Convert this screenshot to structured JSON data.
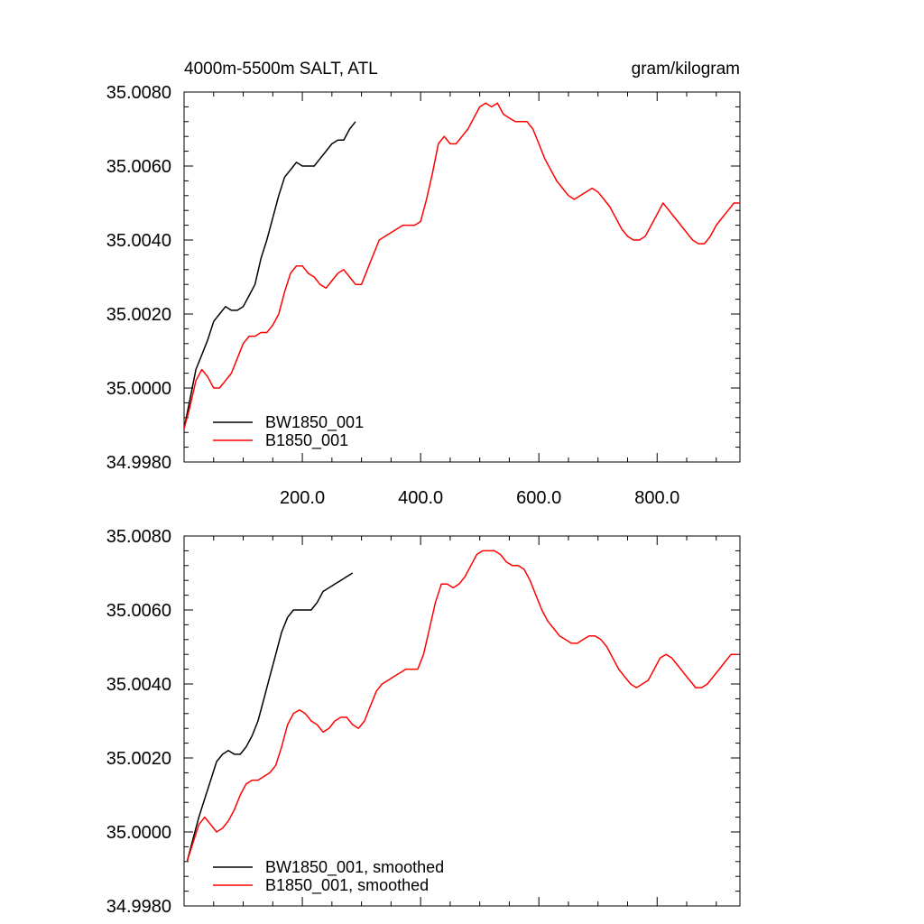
{
  "chart_data": [
    {
      "type": "line",
      "title": "4000m-5500m SALT, ATL",
      "units": "gram/kilogram",
      "xlim": [
        0,
        940
      ],
      "ylim": [
        34.998,
        35.008
      ],
      "yticks": [
        34.998,
        35.0,
        35.002,
        35.004,
        35.006,
        35.008
      ],
      "ytick_labels": [
        "34.9980",
        "35.0000",
        "35.0020",
        "35.0040",
        "35.0060",
        "35.0080"
      ],
      "xticks": [
        200,
        400,
        600,
        800
      ],
      "xtick_labels": [
        "200.0",
        "400.0",
        "600.0",
        "800.0"
      ],
      "legend_position": "bottom-left",
      "series": [
        {
          "name": "BW1850_001",
          "color": "#000000",
          "x": [
            0,
            10,
            20,
            30,
            40,
            50,
            60,
            70,
            80,
            90,
            100,
            110,
            120,
            130,
            140,
            150,
            160,
            170,
            180,
            190,
            200,
            210,
            220,
            230,
            240,
            250,
            260,
            270,
            280,
            290
          ],
          "y": [
            34.9989,
            34.9997,
            35.0005,
            35.0009,
            35.0013,
            35.0018,
            35.002,
            35.0022,
            35.0021,
            35.0021,
            35.0022,
            35.0025,
            35.0028,
            35.0035,
            35.004,
            35.0046,
            35.0052,
            35.0057,
            35.0059,
            35.0061,
            35.006,
            35.006,
            35.006,
            35.0062,
            35.0064,
            35.0066,
            35.0067,
            35.0067,
            35.007,
            35.0072
          ]
        },
        {
          "name": "B1850_001",
          "color": "#ff0000",
          "x": [
            0,
            10,
            20,
            30,
            40,
            50,
            60,
            70,
            80,
            90,
            100,
            110,
            120,
            130,
            140,
            150,
            160,
            170,
            180,
            190,
            200,
            210,
            220,
            230,
            240,
            250,
            260,
            270,
            280,
            290,
            300,
            310,
            320,
            330,
            340,
            350,
            360,
            370,
            380,
            390,
            400,
            410,
            420,
            430,
            440,
            450,
            460,
            470,
            480,
            490,
            500,
            510,
            520,
            530,
            540,
            550,
            560,
            570,
            580,
            590,
            600,
            610,
            620,
            630,
            640,
            650,
            660,
            670,
            680,
            690,
            700,
            710,
            720,
            730,
            740,
            750,
            760,
            770,
            780,
            790,
            800,
            810,
            820,
            830,
            840,
            850,
            860,
            870,
            880,
            890,
            900,
            910,
            920,
            930,
            940
          ],
          "y": [
            34.9989,
            34.9995,
            35.0002,
            35.0005,
            35.0003,
            35.0,
            35.0,
            35.0002,
            35.0004,
            35.0008,
            35.0012,
            35.0014,
            35.0014,
            35.0015,
            35.0015,
            35.0017,
            35.002,
            35.0026,
            35.0031,
            35.0033,
            35.0033,
            35.0031,
            35.003,
            35.0028,
            35.0027,
            35.0029,
            35.0031,
            35.0032,
            35.003,
            35.0028,
            35.0028,
            35.0032,
            35.0036,
            35.004,
            35.0041,
            35.0042,
            35.0043,
            35.0044,
            35.0044,
            35.0044,
            35.0045,
            35.0051,
            35.0058,
            35.0066,
            35.0068,
            35.0066,
            35.0066,
            35.0068,
            35.007,
            35.0073,
            35.0076,
            35.0077,
            35.0076,
            35.0077,
            35.0074,
            35.0073,
            35.0072,
            35.0072,
            35.0072,
            35.007,
            35.0066,
            35.0062,
            35.0059,
            35.0056,
            35.0054,
            35.0052,
            35.0051,
            35.0052,
            35.0053,
            35.0054,
            35.0053,
            35.0051,
            35.0049,
            35.0046,
            35.0043,
            35.0041,
            35.004,
            35.004,
            35.0041,
            35.0044,
            35.0047,
            35.005,
            35.0048,
            35.0046,
            35.0044,
            35.0042,
            35.004,
            35.0039,
            35.0039,
            35.0041,
            35.0044,
            35.0046,
            35.0048,
            35.005,
            35.005
          ]
        }
      ]
    },
    {
      "type": "line",
      "title": "",
      "xlim": [
        0,
        940
      ],
      "ylim": [
        34.998,
        35.008
      ],
      "yticks": [
        34.998,
        35.0,
        35.002,
        35.004,
        35.006,
        35.008
      ],
      "ytick_labels": [
        "34.9980",
        "35.0000",
        "35.0020",
        "35.0040",
        "35.0060",
        "35.0080"
      ],
      "xticks": [
        200,
        400,
        600,
        800
      ],
      "xtick_labels": [],
      "legend_position": "bottom-left",
      "series": [
        {
          "name": "BW1850_001, smoothed",
          "color": "#000000",
          "x": [
            5,
            15,
            25,
            35,
            45,
            55,
            65,
            75,
            85,
            95,
            105,
            115,
            125,
            135,
            145,
            155,
            165,
            175,
            185,
            195,
            205,
            215,
            225,
            235,
            245,
            255,
            265,
            275,
            285
          ],
          "y": [
            34.9992,
            34.9998,
            35.0004,
            35.0009,
            35.0014,
            35.0019,
            35.0021,
            35.0022,
            35.0021,
            35.0021,
            35.0023,
            35.0026,
            35.003,
            35.0036,
            35.0042,
            35.0048,
            35.0054,
            35.0058,
            35.006,
            35.006,
            35.006,
            35.006,
            35.0062,
            35.0065,
            35.0066,
            35.0067,
            35.0068,
            35.0069,
            35.007
          ]
        },
        {
          "name": "B1850_001, smoothed",
          "color": "#ff0000",
          "x": [
            5,
            15,
            25,
            35,
            45,
            55,
            65,
            75,
            85,
            95,
            105,
            115,
            125,
            135,
            145,
            155,
            165,
            175,
            185,
            195,
            205,
            215,
            225,
            235,
            245,
            255,
            265,
            275,
            285,
            295,
            305,
            315,
            325,
            335,
            345,
            355,
            365,
            375,
            385,
            395,
            405,
            415,
            425,
            435,
            445,
            455,
            465,
            475,
            485,
            495,
            505,
            515,
            525,
            535,
            545,
            555,
            565,
            575,
            585,
            595,
            605,
            615,
            625,
            635,
            645,
            655,
            665,
            675,
            685,
            695,
            705,
            715,
            725,
            735,
            745,
            755,
            765,
            775,
            785,
            795,
            805,
            815,
            825,
            835,
            845,
            855,
            865,
            875,
            885,
            895,
            905,
            915,
            925,
            935
          ],
          "y": [
            34.9992,
            34.9997,
            35.0002,
            35.0004,
            35.0002,
            35.0,
            35.0001,
            35.0003,
            35.0006,
            35.001,
            35.0013,
            35.0014,
            35.0014,
            35.0015,
            35.0016,
            35.0018,
            35.0023,
            35.0029,
            35.0032,
            35.0033,
            35.0032,
            35.003,
            35.0029,
            35.0027,
            35.0028,
            35.003,
            35.0031,
            35.0031,
            35.0029,
            35.0028,
            35.003,
            35.0034,
            35.0038,
            35.004,
            35.0041,
            35.0042,
            35.0043,
            35.0044,
            35.0044,
            35.0044,
            35.0048,
            35.0055,
            35.0062,
            35.0067,
            35.0067,
            35.0066,
            35.0067,
            35.0069,
            35.0072,
            35.0075,
            35.0076,
            35.0076,
            35.0076,
            35.0075,
            35.0073,
            35.0072,
            35.0072,
            35.0071,
            35.0068,
            35.0064,
            35.006,
            35.0057,
            35.0055,
            35.0053,
            35.0052,
            35.0051,
            35.0051,
            35.0052,
            35.0053,
            35.0053,
            35.0052,
            35.005,
            35.0047,
            35.0044,
            35.0042,
            35.004,
            35.0039,
            35.004,
            35.0041,
            35.0044,
            35.0047,
            35.0048,
            35.0047,
            35.0045,
            35.0043,
            35.0041,
            35.0039,
            35.0039,
            35.004,
            35.0042,
            35.0044,
            35.0046,
            35.0048,
            35.0048
          ]
        }
      ]
    }
  ]
}
